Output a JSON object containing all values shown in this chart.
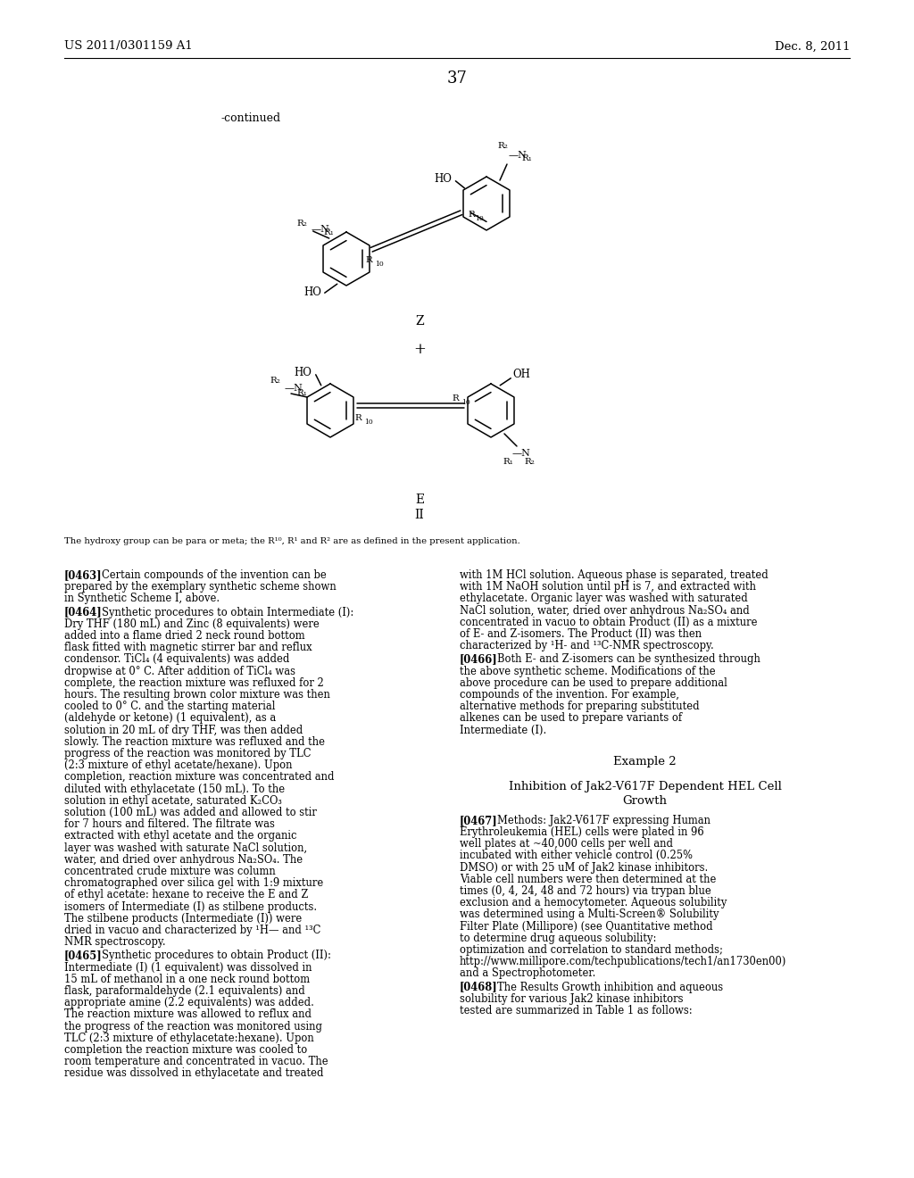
{
  "header_left": "US 2011/0301159 A1",
  "header_right": "Dec. 8, 2011",
  "page_number": "37",
  "continued_label": "-continued",
  "z_label": "Z",
  "plus_label": "+",
  "e_label": "E",
  "ii_label": "II",
  "footnote": "The hydroxy group can be para or meta; the R",
  "footnote2": ", R",
  "footnote3": " and R",
  "footnote4": " are as defined in the present application.",
  "para0463_tag": "[0463]",
  "para0463_text": "Certain compounds of the invention can be prepared by the exemplary synthetic scheme shown in Synthetic Scheme I, above.",
  "para0464_tag": "[0464]",
  "para0464_text": "Synthetic procedures to obtain Intermediate (I): Dry THF (180 mL) and Zinc (8 equivalents) were added into a flame dried 2 neck round bottom flask fitted with magnetic stirrer bar and reflux condensor. TiCl₄ (4 equivalents) was added dropwise at 0° C. After addition of TiCl₄ was complete, the reaction mixture was refluxed for 2 hours. The resulting brown color mixture was then cooled to 0° C. and the starting material (aldehyde or ketone) (1 equivalent), as a solution in 20 mL of dry THF, was then added slowly. The reaction mixture was refluxed and the progress of the reaction was monitored by TLC (2:3 mixture of ethyl acetate/hexane). Upon completion, reaction mixture was concentrated and diluted with ethylacetate (150 mL). To the solution in ethyl acetate, saturated K₂CO₃ solution (100 mL) was added and allowed to stir for 7 hours and filtered. The filtrate was extracted with ethyl acetate and the organic layer was washed with saturate NaCl solution, water, and dried over anhydrous Na₂SO₄. The concentrated crude mixture was column chromatographed over silica gel with 1:9 mixture of ethyl acetate: hexane to receive the E and Z isomers of Intermediate (I) as stilbene products. The stilbene products (Intermediate (I)) were dried in vacuo and characterized by ¹H— and ¹³C NMR spectroscopy.",
  "para0465_tag": "[0465]",
  "para0465_text": "Synthetic procedures to obtain Product (II): Intermediate (I) (1 equivalent) was dissolved in 15 mL of methanol in a one neck round bottom flask, paraformaldehyde (2.1 equivalents) and appropriate amine (2.2 equivalents) was added. The reaction mixture was allowed to reflux and the progress of the reaction was monitored using TLC (2:3 mixture of ethylacetate:hexane). Upon completion the reaction mixture was cooled to room temperature and concentrated in vacuo. The residue was dissolved in ethylacetate and treated",
  "right_col_cont": "with 1M HCl solution. Aqueous phase is separated, treated with 1M NaOH solution until pH is 7, and extracted with ethylacetate. Organic layer was washed with saturated NaCl solution, water, dried over anhydrous Na₂SO₄ and concentrated in vacuo to obtain Product (II) as a mixture of E- and Z-isomers. The Product (II) was then characterized by ¹H- and ¹³C-NMR spectroscopy.",
  "para0466_tag": "[0466]",
  "para0466_text": "Both E- and Z-isomers can be synthesized through the above synthetic scheme. Modifications of the above procedure can be used to prepare additional compounds of the invention. For example, alternative methods for preparing substituted alkenes can be used to prepare variants of Intermediate (I).",
  "example2_label": "Example 2",
  "example2_title1": "Inhibition of Jak2-V617F Dependent HEL Cell",
  "example2_title2": "Growth",
  "para0467_tag": "[0467]",
  "para0467_text": "Methods: Jak2-V617F expressing Human Erythroleukemia (HEL) cells were plated in 96 well plates at ~40,000 cells per well and incubated with either vehicle control (0.25% DMSO) or with 25 uM of Jak2 kinase inhibitors. Viable cell numbers were then determined at the times (0, 4, 24, 48 and 72 hours) via trypan blue exclusion and a hemocytometer. Aqueous solubility was determined using a Multi-Screen® Solubility Filter Plate (Millipore) (see Quantitative method to determine drug aqueous solubility: optimization and correlation to standard methods; http://www.millipore.com/techpublications/tech1/an1730en00) and a Spectrophotometer.",
  "para0468_tag": "[0468]",
  "para0468_text": "The Results Growth inhibition and aqueous solubility for various Jak2 kinase inhibitors tested are summarized in Table 1 as follows:",
  "bg_color": "#ffffff",
  "text_color": "#000000"
}
